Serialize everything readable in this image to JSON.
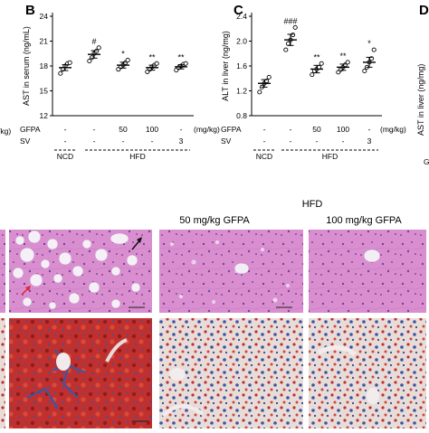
{
  "chart_data": [
    {
      "panel": "B",
      "type": "scatter",
      "ylabel": "AST in serum (ng/mL)",
      "ylim": [
        12,
        24
      ],
      "yticks": [
        "12",
        "15",
        "18",
        "21",
        "24"
      ],
      "categories": [
        "NCD",
        "HFD",
        "HFD+GFPA50",
        "HFD+GFPA100",
        "HFD+SV3"
      ],
      "means": [
        17.8,
        19.4,
        18.1,
        17.8,
        17.9
      ],
      "sem": [
        0.35,
        0.45,
        0.35,
        0.3,
        0.25
      ],
      "points": [
        [
          17.1,
          17.6,
          18.0,
          18.3,
          18.4
        ],
        [
          18.6,
          19.0,
          19.5,
          19.8,
          20.2
        ],
        [
          17.6,
          17.9,
          18.1,
          18.4,
          18.7
        ],
        [
          17.3,
          17.6,
          17.9,
          18.1,
          18.3
        ],
        [
          17.5,
          17.8,
          18.0,
          18.2,
          18.3
        ]
      ],
      "significance": [
        "",
        "#",
        "*",
        "**",
        "**"
      ],
      "row_labels": [
        "GFPA",
        "SV"
      ],
      "unit_label": "(mg/kg)",
      "row_values": [
        [
          "-",
          "-",
          "50",
          "100",
          "-"
        ],
        [
          "-",
          "-",
          "-",
          "-",
          "3"
        ]
      ],
      "groups": [
        "NCD",
        "HFD"
      ]
    },
    {
      "panel": "C",
      "type": "scatter",
      "ylabel": "ALT in liver (ng/mg)",
      "ylim": [
        0.8,
        2.4
      ],
      "yticks": [
        "0.8",
        "1.2",
        "1.6",
        "2.0",
        "2.4"
      ],
      "categories": [
        "NCD",
        "HFD",
        "HFD+GFPA50",
        "HFD+GFPA100",
        "HFD+SV3"
      ],
      "means": [
        1.32,
        2.02,
        1.55,
        1.58,
        1.66
      ],
      "sem": [
        0.06,
        0.09,
        0.06,
        0.05,
        0.08
      ],
      "points": [
        [
          1.18,
          1.26,
          1.32,
          1.36,
          1.42
        ],
        [
          1.86,
          1.96,
          2.02,
          2.1,
          2.22
        ],
        [
          1.46,
          1.52,
          1.55,
          1.58,
          1.64
        ],
        [
          1.5,
          1.54,
          1.58,
          1.62,
          1.66
        ],
        [
          1.52,
          1.58,
          1.66,
          1.72,
          1.86
        ]
      ],
      "significance": [
        "",
        "###",
        "**",
        "**",
        "*"
      ],
      "row_labels": [
        "GFPA",
        "SV"
      ],
      "unit_label": "(mg/kg)",
      "row_values": [
        [
          "-",
          "-",
          "50",
          "100",
          "-"
        ],
        [
          "-",
          "-",
          "-",
          "-",
          "3"
        ]
      ],
      "groups": [
        "NCD",
        "HFD"
      ]
    }
  ],
  "panels": {
    "B": "B",
    "C": "C",
    "D": "D",
    "clipped_unit": "/kg)",
    "clipped_d_ylabel": "AST in liver (ng/mg)",
    "clipped_d_row": "G"
  },
  "micrograph": {
    "header": "HFD",
    "col_labels": [
      "50 mg/kg GFPA",
      "100 mg/kg GFPA"
    ],
    "colors": {
      "he_bg": "#d98fcf",
      "he_dark": "#b15aa6",
      "oil_red": "#c0302e",
      "oil_blue": "#3d55a3",
      "oil_light": "#e8dcd8"
    }
  }
}
